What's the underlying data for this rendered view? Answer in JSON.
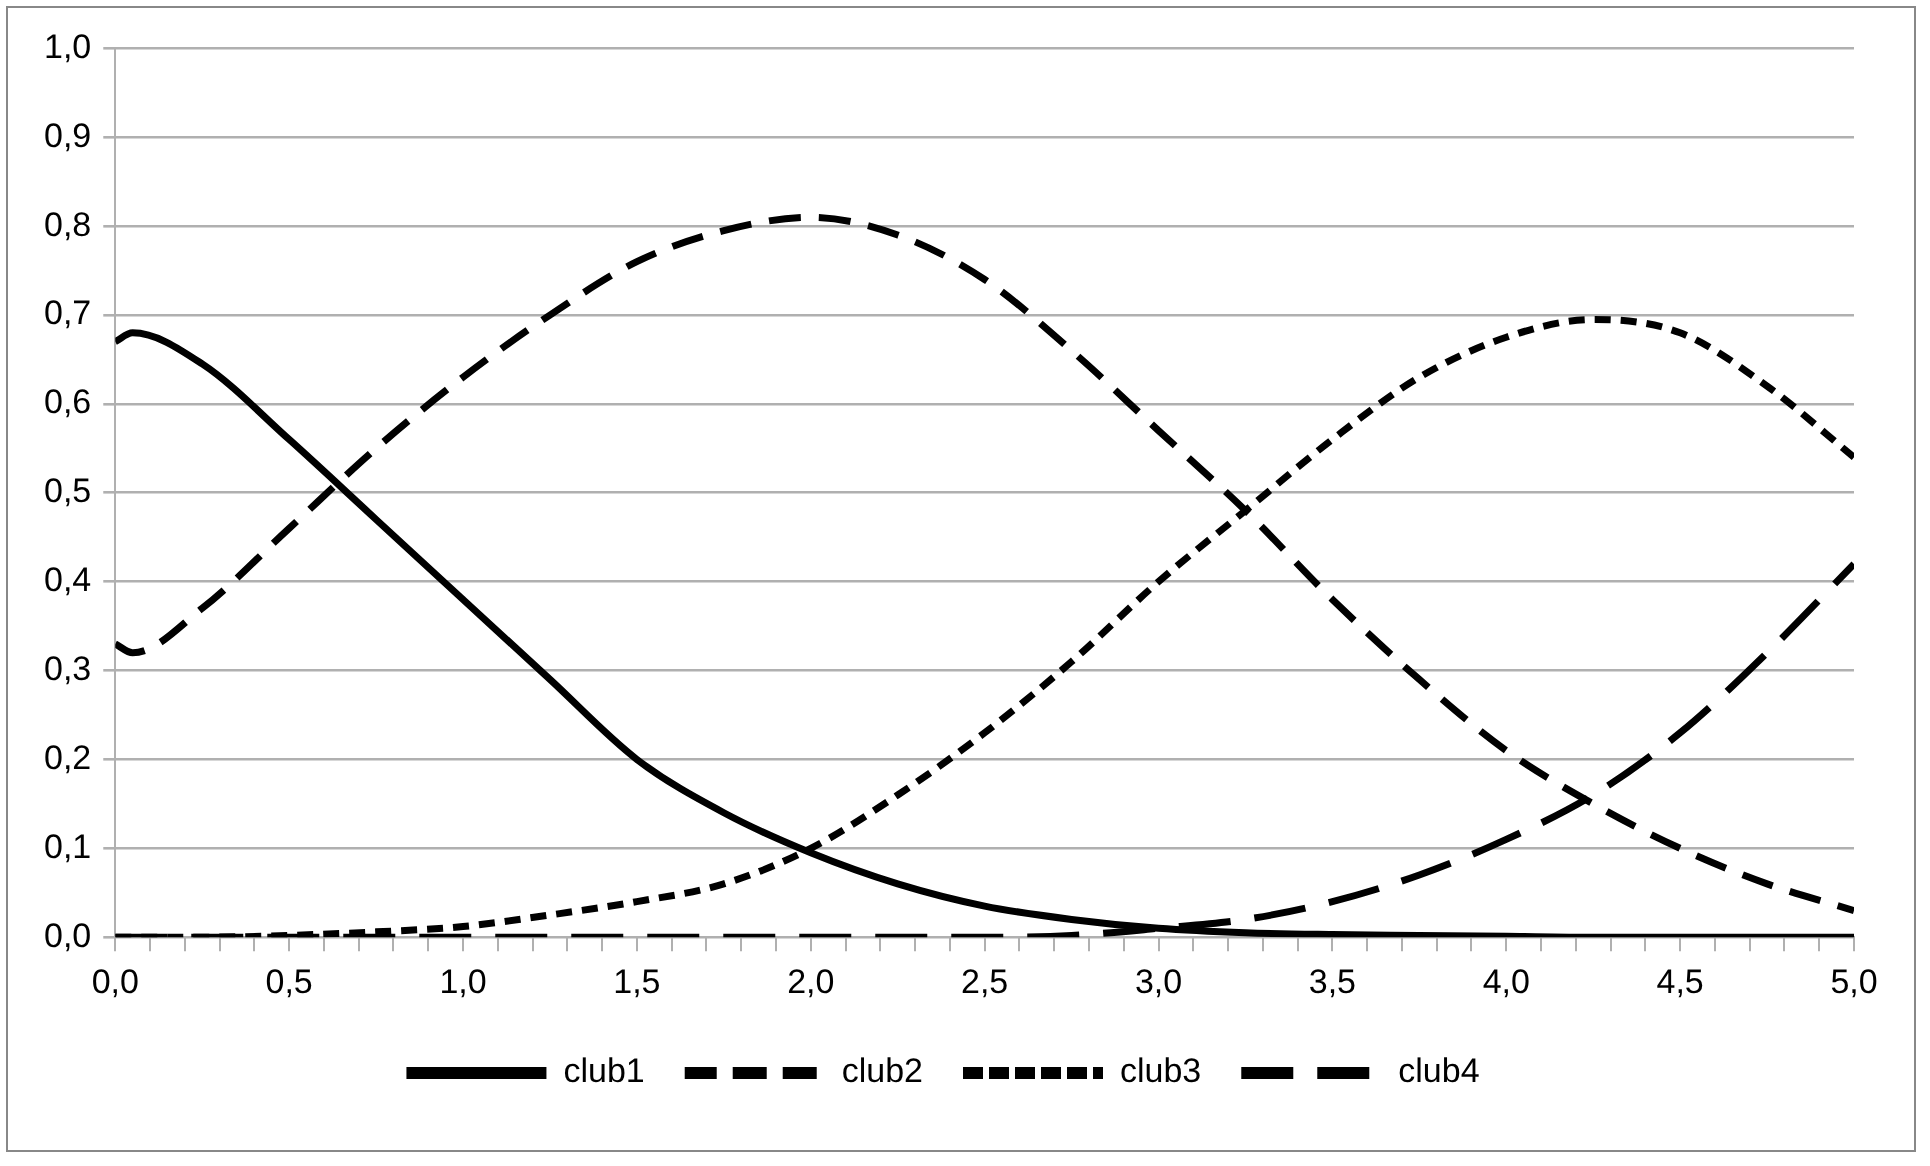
{
  "chart_data": {
    "type": "line",
    "x": [
      0,
      0.05,
      0.25,
      0.5,
      0.75,
      1,
      1.25,
      1.5,
      1.75,
      2,
      2.25,
      2.5,
      2.75,
      3,
      3.25,
      3.5,
      3.75,
      4,
      4.25,
      4.5,
      4.75,
      5
    ],
    "series": [
      {
        "name": "club1",
        "color": "#000000",
        "line_style": "solid",
        "values": [
          0.67,
          0.68,
          0.645,
          0.56,
          0.47,
          0.38,
          0.29,
          0.2,
          0.14,
          0.095,
          0.06,
          0.035,
          0.02,
          0.01,
          0.005,
          0.003,
          0.002,
          0.001,
          0,
          0,
          0,
          0
        ]
      },
      {
        "name": "club2",
        "color": "#000000",
        "line_style": "dashed",
        "values": [
          0.33,
          0.32,
          0.37,
          0.46,
          0.55,
          0.63,
          0.7,
          0.76,
          0.795,
          0.81,
          0.79,
          0.74,
          0.66,
          0.57,
          0.48,
          0.38,
          0.29,
          0.21,
          0.15,
          0.1,
          0.06,
          0.03
        ]
      },
      {
        "name": "club3",
        "color": "#000000",
        "line_style": "dotted",
        "values": [
          0,
          0,
          0,
          0.002,
          0.006,
          0.012,
          0.025,
          0.04,
          0.06,
          0.1,
          0.16,
          0.23,
          0.31,
          0.4,
          0.48,
          0.56,
          0.63,
          0.675,
          0.695,
          0.68,
          0.62,
          0.54
        ]
      },
      {
        "name": "club4",
        "color": "#000000",
        "line_style": "longdash",
        "values": [
          0,
          0,
          0,
          0,
          0,
          0,
          0,
          0,
          0,
          0,
          0,
          0,
          0.002,
          0.01,
          0.02,
          0.04,
          0.07,
          0.11,
          0.16,
          0.23,
          0.32,
          0.42
        ]
      }
    ],
    "xlim": [
      0,
      5
    ],
    "xticks": [
      {
        "value": 0,
        "label": "0,0"
      },
      {
        "value": 0.1,
        "label": null
      },
      {
        "value": 0.2,
        "label": null
      },
      {
        "value": 0.3,
        "label": null
      },
      {
        "value": 0.4,
        "label": null
      },
      {
        "value": 0.5,
        "label": "0,5"
      },
      {
        "value": 0.6,
        "label": null
      },
      {
        "value": 0.7,
        "label": null
      },
      {
        "value": 0.8,
        "label": null
      },
      {
        "value": 0.9,
        "label": null
      },
      {
        "value": 1,
        "label": "1,0"
      },
      {
        "value": 1.1,
        "label": null
      },
      {
        "value": 1.2,
        "label": null
      },
      {
        "value": 1.3,
        "label": null
      },
      {
        "value": 1.4,
        "label": null
      },
      {
        "value": 1.5,
        "label": "1,5"
      },
      {
        "value": 1.6,
        "label": null
      },
      {
        "value": 1.7,
        "label": null
      },
      {
        "value": 1.8,
        "label": null
      },
      {
        "value": 1.9,
        "label": null
      },
      {
        "value": 2,
        "label": "2,0"
      },
      {
        "value": 2.1,
        "label": null
      },
      {
        "value": 2.2,
        "label": null
      },
      {
        "value": 2.3,
        "label": null
      },
      {
        "value": 2.4,
        "label": null
      },
      {
        "value": 2.5,
        "label": "2,5"
      },
      {
        "value": 2.6,
        "label": null
      },
      {
        "value": 2.7,
        "label": null
      },
      {
        "value": 2.8,
        "label": null
      },
      {
        "value": 2.9,
        "label": null
      },
      {
        "value": 3,
        "label": "3,0"
      },
      {
        "value": 3.1,
        "label": null
      },
      {
        "value": 3.2,
        "label": null
      },
      {
        "value": 3.3,
        "label": null
      },
      {
        "value": 3.4,
        "label": null
      },
      {
        "value": 3.5,
        "label": "3,5"
      },
      {
        "value": 3.6,
        "label": null
      },
      {
        "value": 3.7,
        "label": null
      },
      {
        "value": 3.8,
        "label": null
      },
      {
        "value": 3.9,
        "label": null
      },
      {
        "value": 4,
        "label": "4,0"
      },
      {
        "value": 4.1,
        "label": null
      },
      {
        "value": 4.2,
        "label": null
      },
      {
        "value": 4.3,
        "label": null
      },
      {
        "value": 4.4,
        "label": null
      },
      {
        "value": 4.5,
        "label": "4,5"
      },
      {
        "value": 4.6,
        "label": null
      },
      {
        "value": 4.7,
        "label": null
      },
      {
        "value": 4.8,
        "label": null
      },
      {
        "value": 4.9,
        "label": null
      },
      {
        "value": 5,
        "label": "5,0"
      }
    ],
    "ylim": [
      0,
      1
    ],
    "yticks": [
      {
        "value": 0,
        "label": "0,0"
      },
      {
        "value": 0.1,
        "label": "0,1"
      },
      {
        "value": 0.2,
        "label": "0,2"
      },
      {
        "value": 0.3,
        "label": "0,3"
      },
      {
        "value": 0.4,
        "label": "0,4"
      },
      {
        "value": 0.5,
        "label": "0,5"
      },
      {
        "value": 0.6,
        "label": "0,6"
      },
      {
        "value": 0.7,
        "label": "0,7"
      },
      {
        "value": 0.8,
        "label": "0,8"
      },
      {
        "value": 0.9,
        "label": "0,9"
      },
      {
        "value": 1,
        "label": "1,0"
      }
    ],
    "grid": "y",
    "legend": "bottom",
    "marker": "none"
  }
}
